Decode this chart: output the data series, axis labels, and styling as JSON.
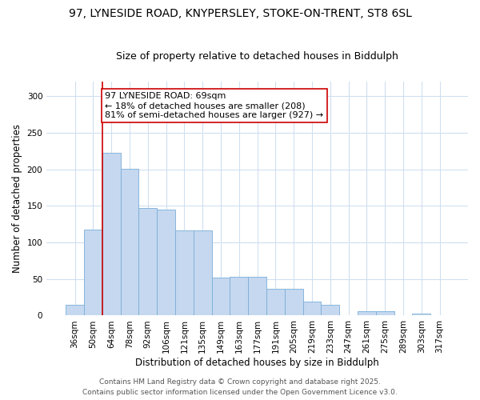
{
  "title1": "97, LYNESIDE ROAD, KNYPERSLEY, STOKE-ON-TRENT, ST8 6SL",
  "title2": "Size of property relative to detached houses in Biddulph",
  "xlabel": "Distribution of detached houses by size in Biddulph",
  "ylabel": "Number of detached properties",
  "categories": [
    "36sqm",
    "50sqm",
    "64sqm",
    "78sqm",
    "92sqm",
    "106sqm",
    "121sqm",
    "135sqm",
    "149sqm",
    "163sqm",
    "177sqm",
    "191sqm",
    "205sqm",
    "219sqm",
    "233sqm",
    "247sqm",
    "261sqm",
    "275sqm",
    "289sqm",
    "303sqm",
    "317sqm"
  ],
  "values": [
    15,
    117,
    222,
    201,
    147,
    145,
    116,
    116,
    52,
    53,
    53,
    37,
    37,
    19,
    15,
    0,
    6,
    6,
    0,
    3,
    1
  ],
  "bar_color": "#c5d8f0",
  "bar_edgecolor": "#7aaed6",
  "vline_x_idx": 2,
  "vline_color": "#cc0000",
  "annotation_line1": "97 LYNESIDE ROAD: 69sqm",
  "annotation_line2": "← 18% of detached houses are smaller (208)",
  "annotation_line3": "81% of semi-detached houses are larger (927) →",
  "annotation_box_facecolor": "#ffffff",
  "annotation_box_edgecolor": "#cc0000",
  "ylim": [
    0,
    320
  ],
  "yticks": [
    0,
    50,
    100,
    150,
    200,
    250,
    300
  ],
  "background_color": "#ffffff",
  "grid_color": "#d0dff0",
  "footer1": "Contains HM Land Registry data © Crown copyright and database right 2025.",
  "footer2": "Contains public sector information licensed under the Open Government Licence v3.0.",
  "title_fontsize": 10,
  "subtitle_fontsize": 9,
  "axis_label_fontsize": 8.5,
  "tick_fontsize": 7.5,
  "annotation_fontsize": 8,
  "footer_fontsize": 6.5
}
